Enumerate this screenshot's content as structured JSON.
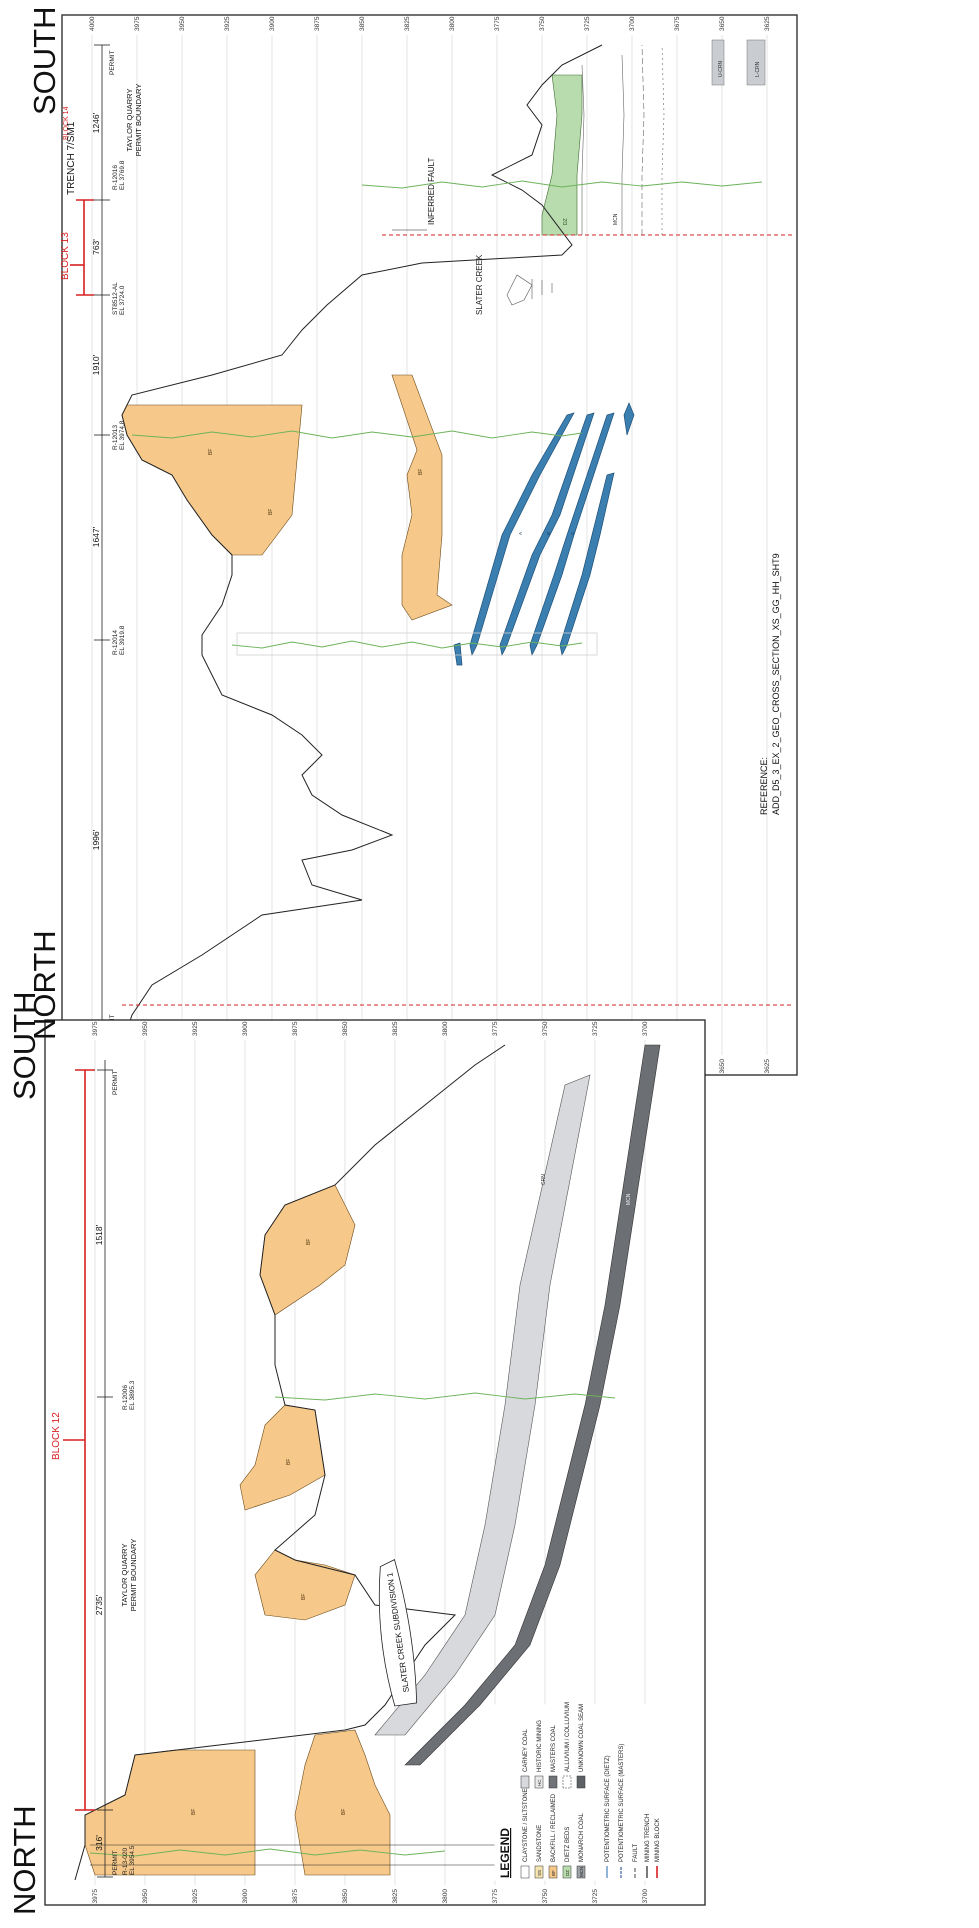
{
  "orientation": {
    "north": "NORTH",
    "south": "SOUTH"
  },
  "panel_top": {
    "title": "TRENCH 7/SM1",
    "block_a": "BLOCK 13",
    "block_b": "BLOCK 14",
    "permit_north": "PERMIT",
    "permit_south": "PERMIT",
    "distances": [
      "1996'",
      "1647'",
      "1910'",
      "763'",
      "1246'"
    ],
    "holes": [
      {
        "id": "R-12014",
        "el": "EL 3919.8"
      },
      {
        "id": "R-12013",
        "el": "EL 3974.8"
      },
      {
        "id": "ST8512-AL",
        "el": "EL 3724.0"
      },
      {
        "id": "R-12016",
        "el": "EL 3769.8"
      }
    ],
    "boundary": [
      "TAYLOR QUARRY",
      "PERMIT BOUNDARY"
    ],
    "creek": "SLATER CREEK",
    "fault": "INFERRED FAULT",
    "reference_label": "REFERENCE:",
    "reference": "ADD_D5_3_EX_2_GEO_CROSS_SECTION_XS_GG_HH_SHT9",
    "elevations": [
      "4000",
      "3975",
      "3950",
      "3925",
      "3900",
      "3875",
      "3850",
      "3825",
      "3800",
      "3775",
      "3750",
      "3725",
      "3700",
      "3675",
      "3650",
      "3625"
    ],
    "unit_codes": {
      "bf": "BF",
      "dz": "DZ",
      "mcn": "MCN",
      "ucn": "U-CRN",
      "lcn": "L-CRN",
      "a": "A",
      "b": "B",
      "c": "C"
    }
  },
  "panel_bottom": {
    "block": "BLOCK 12",
    "permit_north": "PERMIT",
    "permit_south": "PERMIT",
    "distances": [
      "316'",
      "2735'",
      "1518'"
    ],
    "holes": [
      {
        "id": "R-13-020",
        "el": "EL 3954.5"
      },
      {
        "id": "R-12006",
        "el": "EL 3895.3"
      }
    ],
    "boundary": [
      "TAYLOR QUARRY",
      "PERMIT BOUNDARY"
    ],
    "creek": "SLATER CREEK SUBDIVISION 1",
    "elevations": [
      "3975",
      "3950",
      "3925",
      "3900",
      "3875",
      "3850",
      "3825",
      "3800",
      "3775",
      "3750",
      "3725",
      "3700"
    ],
    "unit_codes": {
      "bf": "BF",
      "crn": "CRN",
      "mcn": "MCN"
    }
  },
  "legend": {
    "title": "LEGEND",
    "items": [
      {
        "code": "",
        "label": "CLAYSTONE / SILTSTONE",
        "color": "#ffffff"
      },
      {
        "code": "SS",
        "label": "SANDSTONE",
        "color": "#f4e4b0"
      },
      {
        "code": "BF",
        "label": "BACKFILL / RECLAIMED",
        "color": "#f6c98a"
      },
      {
        "code": "DZ",
        "label": "DIETZ BEDS",
        "color": "#b9dcae"
      },
      {
        "code": "MCN",
        "label": "MONARCH COAL",
        "color": "#9aa0a6"
      },
      {
        "code": "",
        "label": "CARNEY COAL",
        "color": "#d7d9dc"
      },
      {
        "code": "HC",
        "label": "HISTORIC MINING",
        "color": "#e9e9e9"
      },
      {
        "code": "",
        "label": "MASTERS COAL",
        "color": "#707378"
      },
      {
        "code": "",
        "label": "ALLUVIUM / COLLUVIUM",
        "color": "#ffffff"
      },
      {
        "code": "",
        "label": "UNKNOWN COAL SEAM",
        "color": "#5d6166"
      }
    ],
    "lines": [
      {
        "label": "POTENTIOMETRIC SURFACE (DIETZ)",
        "color": "#4a7fc0"
      },
      {
        "label": "POTENTIOMETRIC SURFACE (MASTERS)",
        "color": "#3c5fa0"
      },
      {
        "label": "FAULT",
        "color": "#444444"
      },
      {
        "label": "MINING TRENCH",
        "color": "#222222"
      },
      {
        "label": "MINING BLOCK",
        "color": "#d62020"
      }
    ]
  },
  "colors": {
    "frame": "#333333",
    "backfill": "#f6c98a",
    "coal_light": "#c9ccd0",
    "coal_dark": "#6c6f73",
    "dietz": "#b9dcae",
    "mining_red": "#d62020",
    "seam_blue": "#3b7fb0",
    "log_green": "#6cb35a"
  }
}
